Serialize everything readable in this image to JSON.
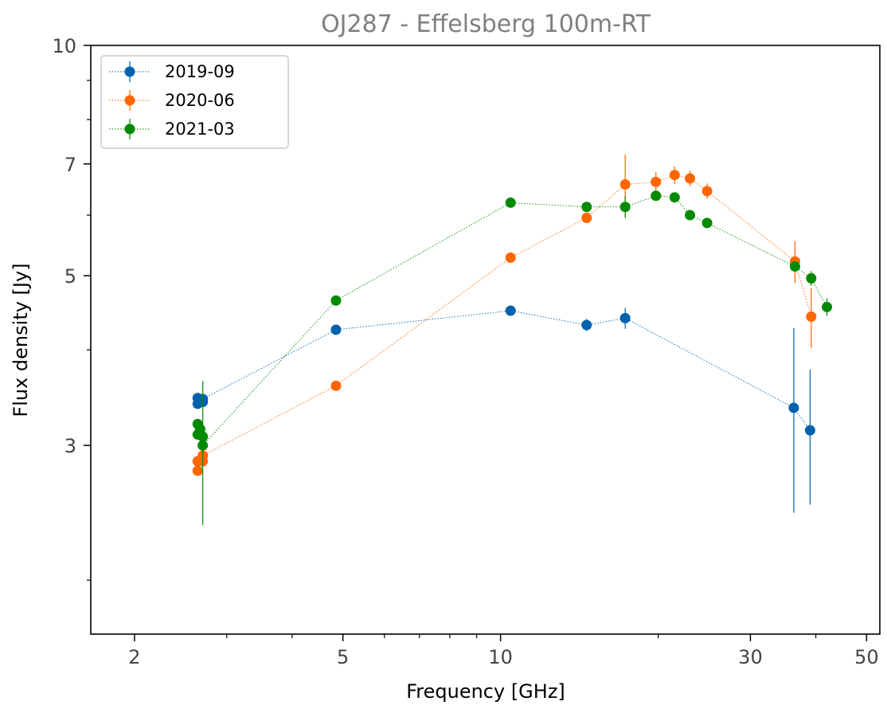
{
  "chart_data": {
    "type": "scatter",
    "title": "OJ287      -      Effelsberg 100m-RT",
    "xlabel": "Frequency [GHz]",
    "ylabel": "Flux density [Jy]",
    "xscale": "log",
    "yscale": "log",
    "xlim": [
      1.65,
      53
    ],
    "ylim": [
      1.7,
      10
    ],
    "x_major_ticks": [
      2,
      5,
      10,
      30,
      50
    ],
    "x_major_tick_labels": [
      "2",
      "5",
      "10",
      "30",
      "50"
    ],
    "x_minor_ticks": [
      3,
      4,
      6,
      7,
      8,
      9,
      20,
      40
    ],
    "y_major_ticks": [
      3,
      5,
      7,
      10
    ],
    "y_major_tick_labels": [
      "3",
      "5",
      "7",
      "10"
    ],
    "y_minor_ticks": [
      2,
      4,
      6,
      8,
      9
    ],
    "grid": false,
    "legend_position": "top-left",
    "series": [
      {
        "name": "2019-09",
        "color": "#0062ad",
        "points": [
          {
            "x": 2.64,
            "y": 3.4,
            "err": 0
          },
          {
            "x": 2.64,
            "y": 3.46,
            "err": 0
          },
          {
            "x": 2.7,
            "y": 3.42,
            "err": 0
          },
          {
            "x": 2.7,
            "y": 3.45,
            "err": 0
          },
          {
            "x": 4.85,
            "y": 4.25,
            "err": 0
          },
          {
            "x": 10.45,
            "y": 4.5,
            "err": 0.05
          },
          {
            "x": 14.6,
            "y": 4.31,
            "err": 0.08
          },
          {
            "x": 17.3,
            "y": 4.4,
            "err": 0.14
          },
          {
            "x": 36.3,
            "y": 3.36,
            "err": 0.91
          },
          {
            "x": 39.0,
            "y": 3.14,
            "err": 0.63
          }
        ]
      },
      {
        "name": "2020-06",
        "color": "#ff6600",
        "points": [
          {
            "x": 2.64,
            "y": 2.78,
            "err": 0
          },
          {
            "x": 2.64,
            "y": 2.86,
            "err": 0
          },
          {
            "x": 2.7,
            "y": 2.86,
            "err": 0
          },
          {
            "x": 2.7,
            "y": 2.91,
            "err": 0
          },
          {
            "x": 4.85,
            "y": 3.59,
            "err": 0
          },
          {
            "x": 10.45,
            "y": 5.28,
            "err": 0
          },
          {
            "x": 14.6,
            "y": 5.95,
            "err": 0
          },
          {
            "x": 17.3,
            "y": 6.58,
            "err": 0.62
          },
          {
            "x": 19.8,
            "y": 6.63,
            "err": 0.2
          },
          {
            "x": 21.5,
            "y": 6.77,
            "err": 0.18
          },
          {
            "x": 23.0,
            "y": 6.7,
            "err": 0.16
          },
          {
            "x": 24.8,
            "y": 6.45,
            "err": 0.15
          },
          {
            "x": 36.5,
            "y": 5.22,
            "err": 0.33
          },
          {
            "x": 39.2,
            "y": 4.42,
            "err": 0.4
          }
        ]
      },
      {
        "name": "2021-03",
        "color": "#008a00",
        "points": [
          {
            "x": 2.64,
            "y": 3.1,
            "err": 0
          },
          {
            "x": 2.64,
            "y": 3.2,
            "err": 0
          },
          {
            "x": 2.67,
            "y": 3.15,
            "err": 0
          },
          {
            "x": 2.7,
            "y": 3.08,
            "err": 0
          },
          {
            "x": 2.7,
            "y": 3.0,
            "err": 0.64
          },
          {
            "x": 4.85,
            "y": 4.64,
            "err": 0
          },
          {
            "x": 10.45,
            "y": 6.23,
            "err": 0
          },
          {
            "x": 14.6,
            "y": 6.15,
            "err": 0
          },
          {
            "x": 17.3,
            "y": 6.15,
            "err": 0.2
          },
          {
            "x": 19.8,
            "y": 6.36,
            "err": 0.06
          },
          {
            "x": 21.5,
            "y": 6.33,
            "err": 0.06
          },
          {
            "x": 23.0,
            "y": 6.0,
            "err": 0.05
          },
          {
            "x": 24.8,
            "y": 5.86,
            "err": 0.05
          },
          {
            "x": 36.5,
            "y": 5.14,
            "err": 0.06
          },
          {
            "x": 39.2,
            "y": 4.96,
            "err": 0.11
          },
          {
            "x": 42.0,
            "y": 4.55,
            "err": 0.12
          }
        ]
      }
    ]
  }
}
